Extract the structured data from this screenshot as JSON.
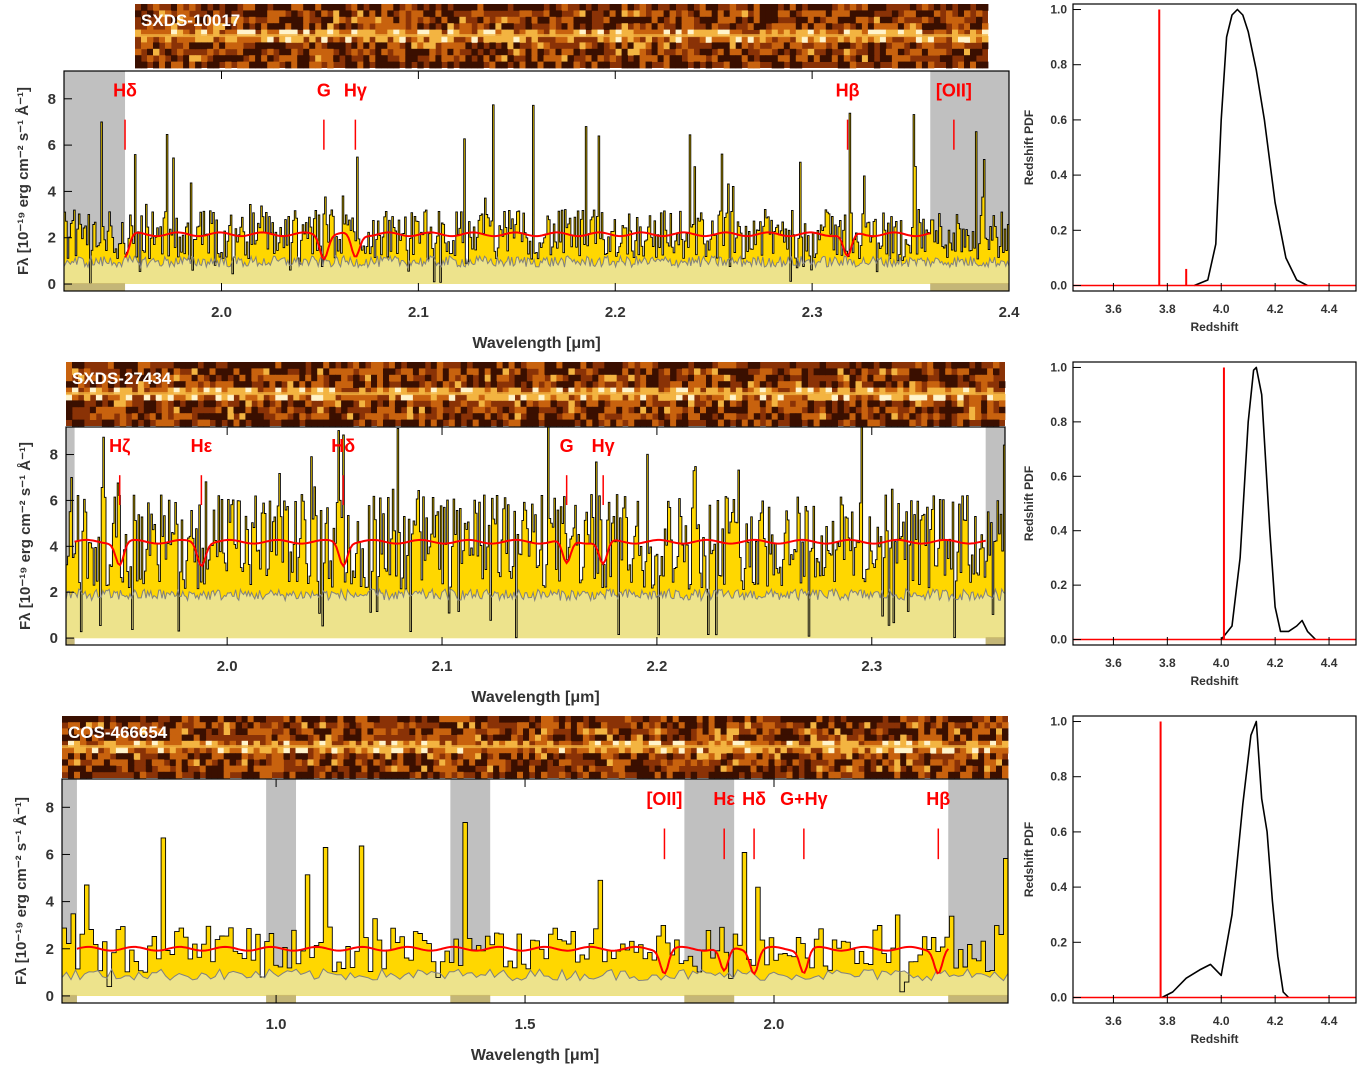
{
  "colors": {
    "flux_fill": "#ffd700",
    "error_fill": "#ede38c",
    "masked_grey": "#c0c0c0",
    "masked_overlap": "#c4b46a",
    "model": "#ff0000",
    "line_label": "#ff0000",
    "spectrum_line": "#000000",
    "error_line": "#808080",
    "image_stops": [
      "#3a0f00",
      "#8a3206",
      "#c8620e",
      "#f3b441",
      "#fff4cc"
    ]
  },
  "chart_data": [
    {
      "type": "line",
      "object": "SXDS-10017",
      "xlabel": "Wavelength [μm]",
      "ylabel": "Fλ [10⁻¹⁹ erg cm⁻² s⁻¹ Å⁻¹]",
      "xlim": [
        1.92,
        2.4
      ],
      "ylim": [
        -0.3,
        9.2
      ],
      "x_ticks": [
        "2.0",
        "2.1",
        "2.2",
        "2.3",
        "2.4"
      ],
      "y_ticks": [
        "0",
        "2",
        "4",
        "6",
        "8"
      ],
      "masked_regions": [
        [
          1.92,
          1.951
        ],
        [
          2.36,
          2.4
        ]
      ],
      "model_level": 2.15,
      "lines": [
        {
          "label": "Hδ",
          "x": 1.951
        },
        {
          "label": "G",
          "x": 2.052
        },
        {
          "label": "Hγ",
          "x": 2.068
        },
        {
          "label": "Hβ",
          "x": 2.318
        },
        {
          "label": "[OII]",
          "x": 2.372
        }
      ]
    },
    {
      "type": "line",
      "object": "SXDS-27434",
      "xlabel": "Wavelength [μm]",
      "ylabel": "Fλ [10⁻¹⁹ erg cm⁻² s⁻¹ Å⁻¹]",
      "xlim": [
        1.925,
        2.362
      ],
      "ylim": [
        -0.3,
        9.2
      ],
      "x_ticks": [
        "2.0",
        "2.1",
        "2.2",
        "2.3"
      ],
      "y_ticks": [
        "0",
        "2",
        "4",
        "6",
        "8"
      ],
      "masked_regions": [
        [
          1.925,
          1.929
        ],
        [
          2.353,
          2.362
        ]
      ],
      "model_level": 4.2,
      "lines": [
        {
          "label": "Hζ",
          "x": 1.95
        },
        {
          "label": "Hε",
          "x": 1.988
        },
        {
          "label": "Hδ",
          "x": 2.054
        },
        {
          "label": "G",
          "x": 2.158
        },
        {
          "label": "Hγ",
          "x": 2.175
        }
      ]
    },
    {
      "type": "line",
      "object": "COS-466654",
      "xlabel": "Wavelength [μm]",
      "ylabel": "Fλ [10⁻¹⁹ erg cm⁻² s⁻¹ Å⁻¹]",
      "xlim": [
        0.57,
        2.47
      ],
      "ylim": [
        -0.3,
        9.2
      ],
      "x_ticks": [
        "1.0",
        "1.5",
        "2.0"
      ],
      "y_ticks": [
        "0",
        "2",
        "4",
        "6",
        "8"
      ],
      "masked_regions": [
        [
          0.57,
          0.6
        ],
        [
          0.98,
          1.04
        ],
        [
          1.35,
          1.43
        ],
        [
          1.82,
          1.92
        ],
        [
          2.35,
          2.47
        ]
      ],
      "model_level": 2.0,
      "lines": [
        {
          "label": "[OII]",
          "x": 1.78
        },
        {
          "label": "Hε",
          "x": 1.9
        },
        {
          "label": "Hδ",
          "x": 1.96
        },
        {
          "label": "G+Hγ",
          "x": 2.06
        },
        {
          "label": "Hβ",
          "x": 2.33
        }
      ]
    },
    {
      "type": "line",
      "xlabel": "Redshift",
      "ylabel": "Redshift PDF",
      "xlim": [
        3.45,
        4.5
      ],
      "ylim": [
        -0.02,
        1.02
      ],
      "x_ticks": [
        "3.6",
        "3.8",
        "4.0",
        "4.2",
        "4.4"
      ],
      "y_ticks": [
        "0.0",
        "0.2",
        "0.4",
        "0.6",
        "0.8",
        "1.0"
      ],
      "pdf": {
        "x": [
          3.9,
          3.95,
          3.98,
          4.0,
          4.02,
          4.04,
          4.06,
          4.08,
          4.1,
          4.13,
          4.16,
          4.2,
          4.24,
          4.28,
          4.32
        ],
        "y": [
          0.0,
          0.02,
          0.15,
          0.6,
          0.9,
          0.98,
          1.0,
          0.98,
          0.92,
          0.78,
          0.6,
          0.3,
          0.1,
          0.02,
          0.0
        ]
      },
      "red_spikes": [
        {
          "x": 3.77,
          "y": 1.0
        },
        {
          "x": 3.87,
          "y": 0.06
        }
      ]
    },
    {
      "type": "line",
      "xlabel": "Redshift",
      "ylabel": "Redshift PDF",
      "xlim": [
        3.45,
        4.5
      ],
      "ylim": [
        -0.02,
        1.02
      ],
      "x_ticks": [
        "3.6",
        "3.8",
        "4.0",
        "4.2",
        "4.4"
      ],
      "y_ticks": [
        "0.0",
        "0.2",
        "0.4",
        "0.6",
        "0.8",
        "1.0"
      ],
      "pdf": {
        "x": [
          4.0,
          4.04,
          4.07,
          4.1,
          4.12,
          4.13,
          4.15,
          4.18,
          4.2,
          4.22,
          4.25,
          4.28,
          4.3,
          4.32,
          4.35
        ],
        "y": [
          0.0,
          0.05,
          0.3,
          0.8,
          0.99,
          1.0,
          0.9,
          0.4,
          0.12,
          0.03,
          0.03,
          0.05,
          0.07,
          0.03,
          0.0
        ]
      },
      "red_spikes": [
        {
          "x": 4.01,
          "y": 1.0
        }
      ]
    },
    {
      "type": "line",
      "xlabel": "Redshift",
      "ylabel": "Redshift PDF",
      "xlim": [
        3.45,
        4.5
      ],
      "ylim": [
        -0.02,
        1.02
      ],
      "x_ticks": [
        "3.6",
        "3.8",
        "4.0",
        "4.2",
        "4.4"
      ],
      "y_ticks": [
        "0.0",
        "0.2",
        "0.4",
        "0.6",
        "0.8",
        "1.0"
      ],
      "pdf": {
        "x": [
          3.78,
          3.82,
          3.87,
          3.92,
          3.96,
          4.0,
          4.04,
          4.08,
          4.11,
          4.13,
          4.15,
          4.17,
          4.19,
          4.21,
          4.23,
          4.25
        ],
        "y": [
          0.0,
          0.02,
          0.07,
          0.1,
          0.12,
          0.08,
          0.3,
          0.7,
          0.95,
          1.0,
          0.72,
          0.6,
          0.35,
          0.15,
          0.02,
          0.0
        ]
      },
      "red_spikes": [
        {
          "x": 3.775,
          "y": 1.0
        }
      ]
    }
  ]
}
